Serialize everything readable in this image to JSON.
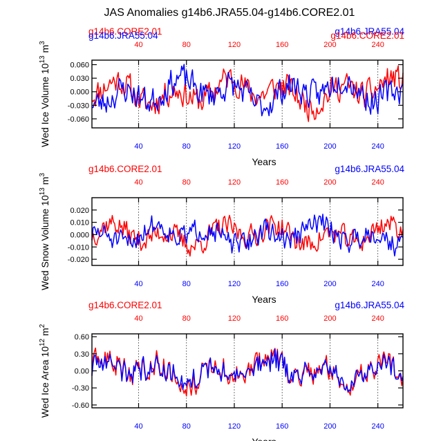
{
  "title": "JAS Anomalies g14b6.JRA55.04-g14b6.CORE2.01",
  "colors": {
    "core": "#ff0000",
    "jra": "#0000ff",
    "axis": "#000000",
    "grid": "#555555"
  },
  "chart_data": [
    {
      "type": "line",
      "ylabel_main": "Wed Ice Volume 10",
      "ylabel_exp": "13",
      "ylabel_unit": " m",
      "ylabel_unit_exp": "3",
      "xlabel": "Years",
      "xlim": [
        1,
        261
      ],
      "ylim": [
        -0.08,
        0.07
      ],
      "yticks": [
        -0.06,
        -0.03,
        0.0,
        0.03,
        0.06
      ],
      "ytick_labels": [
        "-0.060",
        "-0.030",
        "0.000",
        "0.030",
        "0.060"
      ],
      "xticks": [
        40,
        80,
        120,
        160,
        200,
        240
      ],
      "xtick_labels": [
        "40",
        "80",
        "120",
        "160",
        "200",
        "240"
      ],
      "legend_top_left": "g14b6.CORE2.01",
      "legend_top_right": "g14b6.JRA55.04",
      "legend_overlay_left": "g14b6.JRA55.04",
      "legend_overlay_right": "g14b6.CORE2.01",
      "series": [
        {
          "name": "g14b6.CORE2.01",
          "color": "#ff0000",
          "amplitude": 0.04,
          "seed": 11,
          "values": []
        },
        {
          "name": "g14b6.JRA55.04",
          "color": "#0000ff",
          "amplitude": 0.04,
          "seed": 23,
          "values": []
        }
      ]
    },
    {
      "type": "line",
      "ylabel_main": "Wed Snow Volume 10",
      "ylabel_exp": "13",
      "ylabel_unit": " m",
      "ylabel_unit_exp": "3",
      "xlabel": "Years",
      "xlim": [
        1,
        261
      ],
      "ylim": [
        -0.025,
        0.03
      ],
      "yticks": [
        -0.02,
        -0.01,
        0.0,
        0.01,
        0.02
      ],
      "ytick_labels": [
        "-0.020",
        "-0.010",
        "0.000",
        "0.010",
        "0.020"
      ],
      "xticks": [
        40,
        80,
        120,
        160,
        200,
        240
      ],
      "xtick_labels": [
        "40",
        "80",
        "120",
        "160",
        "200",
        "240"
      ],
      "legend_top_left": "g14b6.CORE2.01",
      "legend_top_right": "g14b6.JRA55.04",
      "series": [
        {
          "name": "g14b6.CORE2.01",
          "color": "#ff0000",
          "amplitude": 0.012,
          "seed": 37,
          "values": []
        },
        {
          "name": "g14b6.JRA55.04",
          "color": "#0000ff",
          "amplitude": 0.012,
          "seed": 51,
          "values": []
        }
      ]
    },
    {
      "type": "line",
      "ylabel_main": "Wed Ice Area 10",
      "ylabel_exp": "12",
      "ylabel_unit": " m",
      "ylabel_unit_exp": "2",
      "xlabel": "Years",
      "xlim": [
        1,
        261
      ],
      "ylim": [
        -0.65,
        0.65
      ],
      "yticks": [
        -0.6,
        -0.3,
        0.0,
        0.3,
        0.6
      ],
      "ytick_labels": [
        "-0.60",
        "-0.30",
        "0.00",
        "0.30",
        "0.60"
      ],
      "xticks": [
        40,
        80,
        120,
        160,
        200,
        240
      ],
      "xtick_labels": [
        "40",
        "80",
        "120",
        "160",
        "200",
        "240"
      ],
      "legend_top_left": "g14b6.CORE2.01",
      "legend_top_right": "g14b6.JRA55.04",
      "series": [
        {
          "name": "g14b6.CORE2.01",
          "color": "#ff0000",
          "amplitude": 0.3,
          "seed": 63,
          "values": []
        },
        {
          "name": "g14b6.JRA55.04",
          "color": "#0000ff",
          "amplitude": 0.25,
          "seed": 63,
          "values": []
        }
      ]
    }
  ]
}
